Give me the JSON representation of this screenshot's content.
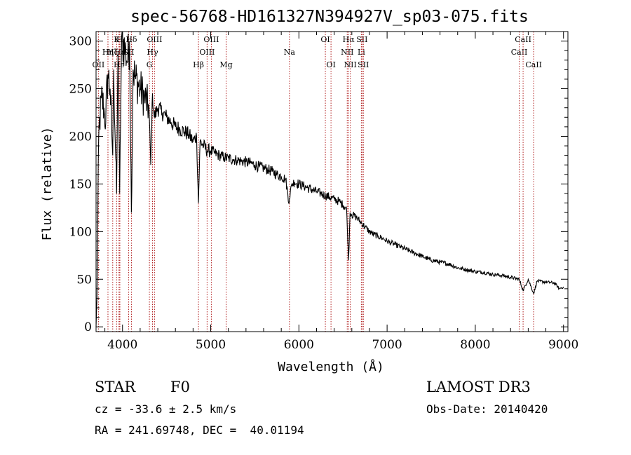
{
  "chart_data": {
    "type": "line",
    "title": "spec-56768-HD161327N394927V_sp03-075.fits",
    "xlabel": "Wavelength (Å)",
    "ylabel": "Flux (relative)",
    "xlim": [
      3700,
      9050
    ],
    "ylim": [
      -5,
      310
    ],
    "xticks": [
      4000,
      5000,
      6000,
      7000,
      8000,
      9000
    ],
    "yticks": [
      0,
      50,
      100,
      150,
      200,
      250,
      300
    ],
    "series": [
      {
        "name": "flux",
        "x": [
          3700,
          3710,
          3730,
          3760,
          3790,
          3800,
          3835,
          3860,
          3889,
          3900,
          3933,
          3950,
          3968,
          3990,
          4030,
          4060,
          4080,
          4101,
          4120,
          4150,
          4200,
          4250,
          4300,
          4320,
          4340,
          4360,
          4400,
          4450,
          4500,
          4550,
          4600,
          4650,
          4700,
          4750,
          4800,
          4840,
          4861,
          4880,
          4920,
          4960,
          5000,
          5050,
          5100,
          5150,
          5200,
          5250,
          5300,
          5350,
          5400,
          5450,
          5500,
          5550,
          5600,
          5650,
          5700,
          5750,
          5800,
          5850,
          5890,
          5893,
          5920,
          5950,
          6000,
          6050,
          6100,
          6150,
          6200,
          6250,
          6300,
          6350,
          6400,
          6450,
          6500,
          6540,
          6563,
          6580,
          6600,
          6650,
          6700,
          6750,
          6800,
          6850,
          6900,
          6950,
          7000,
          7050,
          7100,
          7150,
          7200,
          7250,
          7300,
          7400,
          7500,
          7600,
          7700,
          7800,
          7900,
          8000,
          8100,
          8200,
          8300,
          8400,
          8498,
          8542,
          8600,
          8662,
          8700,
          8800,
          8900,
          8950,
          9000
        ],
        "y": [
          0,
          30,
          200,
          240,
          230,
          210,
          265,
          250,
          180,
          270,
          140,
          290,
          140,
          305,
          290,
          280,
          300,
          120,
          270,
          260,
          250,
          240,
          230,
          170,
          245,
          220,
          230,
          225,
          220,
          215,
          210,
          208,
          205,
          202,
          195,
          200,
          130,
          195,
          190,
          185,
          185,
          182,
          180,
          178,
          177,
          176,
          175,
          174,
          173,
          172,
          170,
          168,
          167,
          165,
          163,
          160,
          158,
          155,
          130,
          135,
          150,
          152,
          150,
          148,
          146,
          144,
          142,
          140,
          138,
          136,
          134,
          132,
          128,
          125,
          70,
          120,
          118,
          115,
          110,
          105,
          100,
          97,
          95,
          93,
          90,
          88,
          86,
          84,
          82,
          80,
          78,
          74,
          70,
          68,
          66,
          62,
          60,
          58,
          57,
          55,
          54,
          52,
          50,
          38,
          50,
          35,
          48,
          47,
          46,
          40,
          42
        ]
      }
    ],
    "lines": [
      {
        "name": "O II",
        "label": "OII",
        "x": 3727,
        "row": 2
      },
      {
        "name": "H eta",
        "label": "Hη",
        "x": 3835,
        "row": 1
      },
      {
        "name": "H zeta",
        "label": "Hζ",
        "x": 3889,
        "row": 1
      },
      {
        "name": "H epsilon",
        "label": "Hε",
        "x": 3970,
        "row": 1
      },
      {
        "name": "H epsilon 2",
        "label": "Hε",
        "x": 3960,
        "row": 2
      },
      {
        "name": "Ca K",
        "label": "K",
        "x": 3933,
        "row": 0
      },
      {
        "name": "Ca H",
        "label": "H",
        "x": 3968,
        "row": 0
      },
      {
        "name": "S II blue",
        "label": "SII",
        "x": 4070,
        "row": 1
      },
      {
        "name": "H delta",
        "label": "Hδ",
        "x": 4101,
        "row": 0
      },
      {
        "name": "G band",
        "label": "G",
        "x": 4305,
        "row": 2
      },
      {
        "name": "H gamma",
        "label": "Hγ",
        "x": 4340,
        "row": 1
      },
      {
        "name": "O III 4363",
        "label": "OIII",
        "x": 4363,
        "row": 0
      },
      {
        "name": "H beta",
        "label": "Hβ",
        "x": 4861,
        "row": 2
      },
      {
        "name": "O III 4959",
        "label": "OIII",
        "x": 4959,
        "row": 1
      },
      {
        "name": "O III 5007",
        "label": "OIII",
        "x": 5007,
        "row": 0
      },
      {
        "name": "Mg",
        "label": "Mg",
        "x": 5175,
        "row": 2
      },
      {
        "name": "Na",
        "label": "Na",
        "x": 5893,
        "row": 1
      },
      {
        "name": "O I 6300",
        "label": "OI",
        "x": 6300,
        "row": 0
      },
      {
        "name": "O I 6364",
        "label": "OI",
        "x": 6364,
        "row": 2
      },
      {
        "name": "N II 6548",
        "label": "NII",
        "x": 6548,
        "row": 1
      },
      {
        "name": "H alpha",
        "label": "Hα",
        "x": 6563,
        "row": 0
      },
      {
        "name": "N II 6583",
        "label": "NII",
        "x": 6583,
        "row": 2
      },
      {
        "name": "Li",
        "label": "Li",
        "x": 6708,
        "row": 1
      },
      {
        "name": "S II 6716",
        "label": "SII",
        "x": 6716,
        "row": 0
      },
      {
        "name": "S II 6731",
        "label": "SII",
        "x": 6731,
        "row": 2
      },
      {
        "name": "Ca II 8498",
        "label": "CaII",
        "x": 8498,
        "row": 1
      },
      {
        "name": "Ca II 8542",
        "label": "CaII",
        "x": 8542,
        "row": 0
      },
      {
        "name": "Ca II 8662",
        "label": "CaII",
        "x": 8662,
        "row": 2
      }
    ],
    "colors": {
      "spectrum": "#000000",
      "lines": "#b22222",
      "axes": "#000000"
    }
  },
  "footer": {
    "class_label": "STAR",
    "subclass": "F0",
    "survey": "LAMOST DR3",
    "cz": "cz = -33.6 ± 2.5 km/s",
    "obs_date": "Obs-Date: 20140420",
    "coords": "RA = 241.69748, DEC =  40.01194"
  }
}
